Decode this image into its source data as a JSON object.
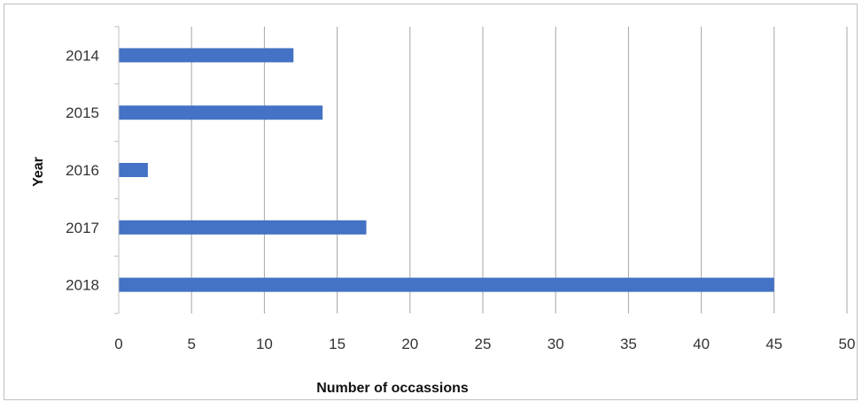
{
  "chart_data": {
    "type": "bar",
    "orientation": "horizontal",
    "categories": [
      "2014",
      "2015",
      "2016",
      "2017",
      "2018"
    ],
    "values": [
      12,
      14,
      2,
      17,
      45
    ],
    "xlabel": "Number of occassions",
    "ylabel": "Year",
    "xlim": [
      0,
      50
    ],
    "xticks": [
      0,
      5,
      10,
      15,
      20,
      25,
      30,
      35,
      40,
      45,
      50
    ],
    "grid": "vertical",
    "legend": "none",
    "bar_color": "#4472C4",
    "grid_color": "#a6a6a6"
  }
}
